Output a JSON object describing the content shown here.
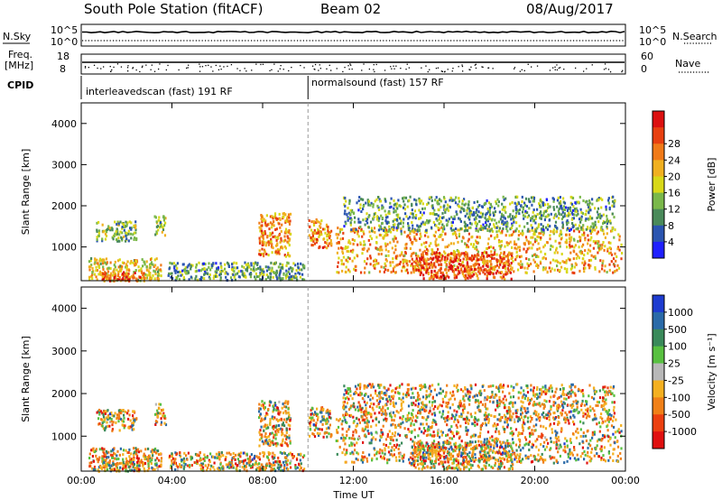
{
  "header": {
    "station": "South Pole Station (fitACF)",
    "beam": "Beam 02",
    "date": "08/Aug/2017"
  },
  "top_panels": {
    "nsky_label": "N.Sky",
    "nsky_ticks": [
      "10^5",
      "10^0"
    ],
    "nsearch_label": "N.Search",
    "nsearch_ticks": [
      "10^5",
      "10^0"
    ],
    "freq_label_1": "Freq.",
    "freq_label_2": "[MHz]",
    "freq_ticks": [
      "18",
      "8"
    ],
    "nave_label": "Nave",
    "nave_ticks": [
      "60",
      "0"
    ],
    "cpid_label": "CPID",
    "cpid_segments": [
      {
        "label": "interleavedscan (fast) 191 RF",
        "start_hour": 0,
        "end_hour": 10
      },
      {
        "label": "normalsound (fast) 157 RF",
        "start_hour": 10,
        "end_hour": 24
      }
    ]
  },
  "chart_data": [
    {
      "type": "heatmap",
      "panel": "power",
      "ylabel": "Slant Range [km]",
      "xlabel": "Time UT",
      "xlim_hours": [
        0,
        24
      ],
      "ylim": [
        180,
        4500
      ],
      "x_ticks": [
        "00:00",
        "04:00",
        "08:00",
        "12:00",
        "16:00",
        "20:00",
        "00:00"
      ],
      "y_ticks": [
        1000,
        2000,
        3000,
        4000
      ],
      "colorbar": {
        "label": "Power [dB]",
        "ticks": [
          "4",
          "8",
          "12",
          "16",
          "20",
          "24",
          "28"
        ],
        "colors": [
          "#1f1fff",
          "#2b55b0",
          "#4a8a5a",
          "#7ab84a",
          "#d8d818",
          "#f0b020",
          "#f07a18",
          "#e84010",
          "#dc1010"
        ]
      },
      "scatter_regions": [
        {
          "t0": 0.3,
          "t1": 3.5,
          "r0": 200,
          "r1": 750,
          "intensity": 0.55
        },
        {
          "t0": 0.8,
          "t1": 2.8,
          "r0": 200,
          "r1": 420,
          "intensity": 0.9
        },
        {
          "t0": 0.6,
          "t1": 2.4,
          "r0": 1150,
          "r1": 1650,
          "intensity": 0.35
        },
        {
          "t0": 3.2,
          "t1": 3.7,
          "r0": 1300,
          "r1": 1800,
          "intensity": 0.4
        },
        {
          "t0": 3.8,
          "t1": 9.8,
          "r0": 220,
          "r1": 650,
          "intensity": 0.3
        },
        {
          "t0": 7.8,
          "t1": 9.2,
          "r0": 800,
          "r1": 1850,
          "intensity": 0.7
        },
        {
          "t0": 10.0,
          "t1": 11.0,
          "r0": 1000,
          "r1": 1700,
          "intensity": 0.7
        },
        {
          "t0": 11.2,
          "t1": 23.8,
          "r0": 400,
          "r1": 1500,
          "intensity": 0.65
        },
        {
          "t0": 14.5,
          "t1": 19.0,
          "r0": 250,
          "r1": 900,
          "intensity": 0.85
        },
        {
          "t0": 11.5,
          "t1": 23.5,
          "r0": 1400,
          "r1": 2250,
          "intensity": 0.3
        }
      ]
    },
    {
      "type": "heatmap",
      "panel": "velocity",
      "ylabel": "Slant Range [km]",
      "xlabel": "Time UT",
      "xlim_hours": [
        0,
        24
      ],
      "ylim": [
        180,
        4500
      ],
      "x_ticks": [
        "00:00",
        "04:00",
        "08:00",
        "12:00",
        "16:00",
        "20:00",
        "00:00"
      ],
      "y_ticks": [
        1000,
        2000,
        3000,
        4000
      ],
      "colorbar": {
        "label": "Velocity [m s⁻¹]",
        "ticks": [
          "1000",
          "500",
          "100",
          "25",
          "-25",
          "-100",
          "-500",
          "-1000"
        ],
        "colors": [
          "#1e3cd0",
          "#2a6aa8",
          "#3a8a5a",
          "#58c040",
          "#b8b8b8",
          "#f4b020",
          "#f08018",
          "#ec4010",
          "#e01010"
        ]
      },
      "scatter_regions": [
        {
          "t0": 0.3,
          "t1": 3.5,
          "r0": 200,
          "r1": 750,
          "intensity": 0.55
        },
        {
          "t0": 0.8,
          "t1": 2.8,
          "r0": 200,
          "r1": 420,
          "intensity": 0.6
        },
        {
          "t0": 0.6,
          "t1": 2.4,
          "r0": 1150,
          "r1": 1650,
          "intensity": 0.5
        },
        {
          "t0": 3.2,
          "t1": 3.7,
          "r0": 1300,
          "r1": 1800,
          "intensity": 0.5
        },
        {
          "t0": 3.8,
          "t1": 9.8,
          "r0": 220,
          "r1": 650,
          "intensity": 0.5
        },
        {
          "t0": 7.8,
          "t1": 9.2,
          "r0": 800,
          "r1": 1850,
          "intensity": 0.75
        },
        {
          "t0": 10.0,
          "t1": 11.0,
          "r0": 1000,
          "r1": 1700,
          "intensity": 0.75
        },
        {
          "t0": 11.2,
          "t1": 23.8,
          "r0": 400,
          "r1": 1500,
          "intensity": 0.6
        },
        {
          "t0": 14.5,
          "t1": 19.0,
          "r0": 250,
          "r1": 900,
          "intensity": 0.7
        },
        {
          "t0": 11.5,
          "t1": 23.5,
          "r0": 1400,
          "r1": 2250,
          "intensity": 0.6
        }
      ]
    }
  ]
}
